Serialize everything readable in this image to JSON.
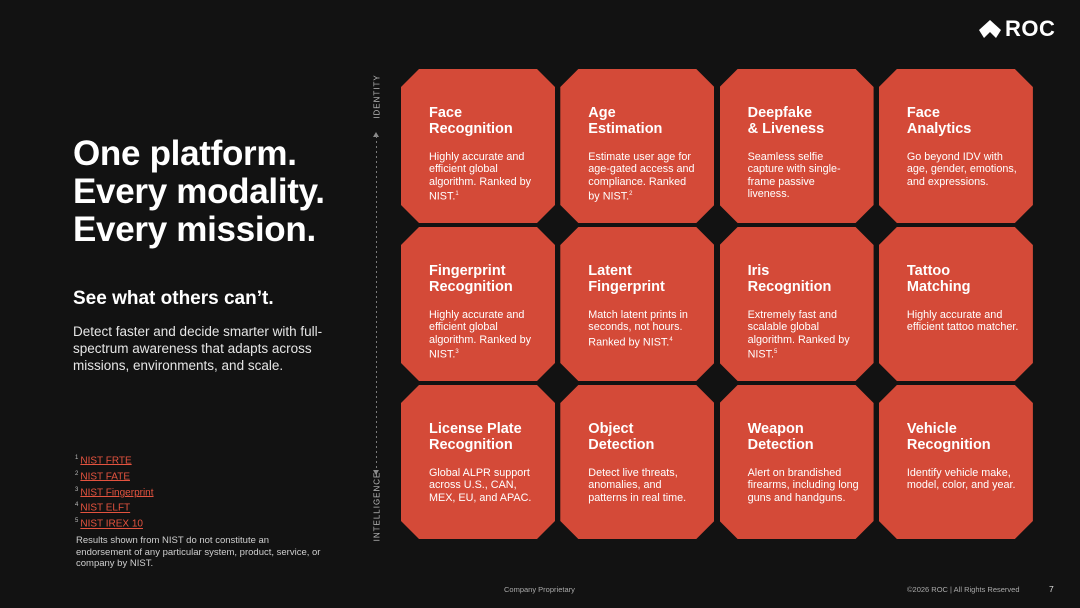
{
  "brand": {
    "logo_text": "ROC",
    "accent": "#d44a38"
  },
  "headline": {
    "line1": "One platform.",
    "line2": "Every modality.",
    "line3": "Every mission."
  },
  "subhead": "See what others can’t.",
  "body": "Detect faster and decide smarter with full-spectrum awareness that adapts across missions, environments, and scale.",
  "footnotes": [
    {
      "num": "1",
      "label": "NIST FRTE"
    },
    {
      "num": "2",
      "label": "NIST FATE"
    },
    {
      "num": "3",
      "label": "NIST Fingerprint"
    },
    {
      "num": "4",
      "label": "NIST ELFT"
    },
    {
      "num": "5",
      "label": "NIST IREX 10"
    }
  ],
  "disclaimer": "Results shown from NIST do not constitute an endorsement of any particular system, product, service, or company by NIST.",
  "axis": {
    "top": "IDENTITY",
    "bottom": "INTELLIGENCE"
  },
  "cards": [
    {
      "title": "Face\nRecognition",
      "desc": "Highly accurate and efficient global algorithm. Ranked by NIST.",
      "ref": "1"
    },
    {
      "title": "Age\nEstimation",
      "desc": "Estimate user age for age-gated access and compliance. Ranked by NIST.",
      "ref": "2"
    },
    {
      "title": "Deepfake\n& Liveness",
      "desc": "Seamless selfie capture with single-frame passive liveness.",
      "ref": ""
    },
    {
      "title": "Face\nAnalytics",
      "desc": "Go beyond IDV with age, gender, emotions, and expressions.",
      "ref": ""
    },
    {
      "title": "Fingerprint\nRecognition",
      "desc": "Highly accurate and efficient global algorithm. Ranked by NIST.",
      "ref": "3"
    },
    {
      "title": "Latent\nFingerprint",
      "desc": "Match latent prints in seconds, not hours. Ranked by NIST.",
      "ref": "4"
    },
    {
      "title": "Iris\nRecognition",
      "desc": "Extremely fast and scalable global algorithm. Ranked by NIST.",
      "ref": "5"
    },
    {
      "title": "Tattoo\nMatching",
      "desc": "Highly accurate and efficient tattoo matcher.",
      "ref": ""
    },
    {
      "title": "License Plate\nRecognition",
      "desc": "Global ALPR support across U.S., CAN, MEX, EU, and APAC.",
      "ref": ""
    },
    {
      "title": "Object\nDetection",
      "desc": "Detect live threats, anomalies, and patterns in real time.",
      "ref": ""
    },
    {
      "title": "Weapon\nDetection",
      "desc": "Alert on brandished firearms, including long guns and handguns.",
      "ref": ""
    },
    {
      "title": "Vehicle\nRecognition",
      "desc": "Identify vehicle make, model, color, and year.",
      "ref": ""
    }
  ],
  "footer": {
    "center": "Company Proprietary",
    "right": "©2026 ROC | All Rights Reserved",
    "page": "7"
  }
}
